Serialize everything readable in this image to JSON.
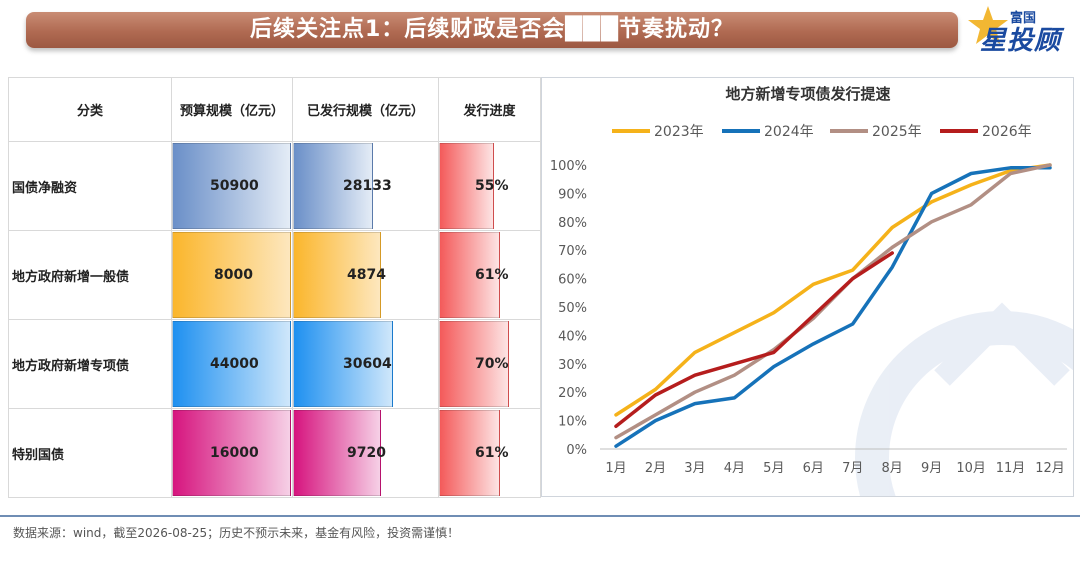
{
  "title": "后续关注点1：后续财政是否会███节奏扰动？",
  "brand": {
    "small": "富国",
    "big": "星投顾"
  },
  "table": {
    "headers": [
      "分类",
      "预算规模（亿元）",
      "已发行规模（亿元）",
      "发行进度"
    ],
    "rows": [
      {
        "category": "国债净融资",
        "budget": "50900",
        "issued": "28133",
        "progress": "55%",
        "progress_value": 0.55,
        "issued_ratio": 0.553,
        "color_start": "#6a8fc8",
        "color_end": "#e4ecf6"
      },
      {
        "category": "地方政府新增一般债",
        "budget": "8000",
        "issued": "4874",
        "progress": "61%",
        "progress_value": 0.61,
        "issued_ratio": 0.609,
        "color_start": "#fbb62c",
        "color_end": "#fde7be"
      },
      {
        "category": "地方政府新增专项债",
        "budget": "44000",
        "issued": "30604",
        "progress": "70%",
        "progress_value": 0.7,
        "issued_ratio": 0.696,
        "color_start": "#1e90f0",
        "color_end": "#cfe7fb"
      },
      {
        "category": "特别国债",
        "budget": "16000",
        "issued": "9720",
        "progress": "61%",
        "progress_value": 0.61,
        "issued_ratio": 0.608,
        "color_start": "#d6147e",
        "color_end": "#f6d0e6"
      }
    ],
    "progress_color_start": "#f45a5a",
    "progress_color_end": "#fde4e4"
  },
  "chart_data": {
    "type": "line",
    "title": "地方新增专项债发行提速",
    "categories": [
      "1月",
      "2月",
      "3月",
      "4月",
      "5月",
      "6月",
      "7月",
      "8月",
      "9月",
      "10月",
      "11月",
      "12月"
    ],
    "yticks": [
      "0%",
      "10%",
      "20%",
      "30%",
      "40%",
      "50%",
      "60%",
      "70%",
      "80%",
      "90%",
      "100%"
    ],
    "ylim": [
      0,
      1
    ],
    "legend_position": "top",
    "grid": false,
    "series": [
      {
        "name": "2023年",
        "color": "#f5b21a",
        "values": [
          0.12,
          0.21,
          0.34,
          0.41,
          0.48,
          0.58,
          0.63,
          0.78,
          0.87,
          0.93,
          0.98,
          1.0
        ]
      },
      {
        "name": "2024年",
        "color": "#1672b9",
        "values": [
          0.01,
          0.1,
          0.16,
          0.18,
          0.29,
          0.37,
          0.44,
          0.64,
          0.9,
          0.97,
          0.99,
          0.99
        ]
      },
      {
        "name": "2025年",
        "color": "#b28f84",
        "values": [
          0.04,
          0.12,
          0.2,
          0.26,
          0.35,
          0.46,
          0.6,
          0.71,
          0.8,
          0.86,
          0.97,
          1.0
        ]
      },
      {
        "name": "2026年",
        "color": "#b51d1d",
        "values": [
          0.08,
          0.19,
          0.26,
          0.3,
          0.34,
          0.47,
          0.6,
          0.69,
          null,
          null,
          null,
          null
        ]
      }
    ]
  },
  "footer": "数据来源：wind，截至2026-08-25；历史不预示未来，基金有风险，投资需谨慎！"
}
